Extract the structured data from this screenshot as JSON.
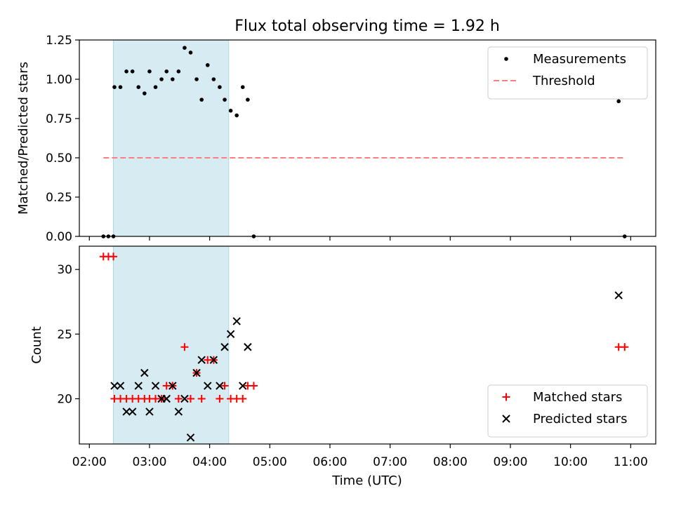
{
  "figure": {
    "title": "Flux total observing time = 1.92 h",
    "xlabel": "Time (UTC)",
    "x_ticks": [
      "02:00",
      "03:00",
      "04:00",
      "05:00",
      "06:00",
      "07:00",
      "08:00",
      "09:00",
      "10:00",
      "11:00"
    ],
    "xlim": [
      "01:50",
      "11:25"
    ],
    "highlight_band": [
      "02:24",
      "04:19"
    ],
    "highlight_color": "#add8e6"
  },
  "chart_data": [
    {
      "type": "scatter",
      "ylabel": "Matched/Predicted stars",
      "ylim": [
        0,
        1.25
      ],
      "y_ticks": [
        "0.00",
        "0.25",
        "0.50",
        "0.75",
        "1.00",
        "1.25"
      ],
      "legend_position": "top-right",
      "series": [
        {
          "name": "Measurements",
          "kind": "points",
          "color": "#000000",
          "points": [
            [
              "02:14",
              0.0
            ],
            [
              "02:19",
              0.0
            ],
            [
              "02:24",
              0.0
            ],
            [
              "02:25",
              0.95
            ],
            [
              "02:31",
              0.95
            ],
            [
              "02:37",
              1.05
            ],
            [
              "02:43",
              1.05
            ],
            [
              "02:49",
              0.95
            ],
            [
              "02:55",
              0.91
            ],
            [
              "03:00",
              1.05
            ],
            [
              "03:06",
              0.95
            ],
            [
              "03:12",
              1.0
            ],
            [
              "03:17",
              1.05
            ],
            [
              "03:23",
              1.0
            ],
            [
              "03:29",
              1.05
            ],
            [
              "03:35",
              1.2
            ],
            [
              "03:41",
              1.17
            ],
            [
              "03:47",
              1.0
            ],
            [
              "03:52",
              0.87
            ],
            [
              "03:58",
              1.09
            ],
            [
              "04:04",
              1.0
            ],
            [
              "04:10",
              0.95
            ],
            [
              "04:15",
              0.87
            ],
            [
              "04:21",
              0.8
            ],
            [
              "04:27",
              0.77
            ],
            [
              "04:33",
              0.95
            ],
            [
              "04:38",
              0.87
            ],
            [
              "04:44",
              0.0
            ],
            [
              "10:48",
              0.86
            ],
            [
              "10:54",
              0.0
            ]
          ]
        },
        {
          "name": "Threshold",
          "kind": "dashed-line",
          "color": "#ff7f7f",
          "points": [
            [
              "02:14",
              0.5
            ],
            [
              "10:54",
              0.5
            ]
          ]
        }
      ]
    },
    {
      "type": "scatter",
      "ylabel": "Count",
      "ylim": [
        16.5,
        31.8
      ],
      "y_ticks": [
        "20",
        "25",
        "30"
      ],
      "legend_position": "bottom-right",
      "series": [
        {
          "name": "Matched stars",
          "marker": "plus",
          "color": "#ff0000",
          "points": [
            [
              "02:14",
              31
            ],
            [
              "02:19",
              31
            ],
            [
              "02:24",
              31
            ],
            [
              "02:25",
              20
            ],
            [
              "02:31",
              20
            ],
            [
              "02:37",
              20
            ],
            [
              "02:43",
              20
            ],
            [
              "02:49",
              20
            ],
            [
              "02:55",
              20
            ],
            [
              "03:00",
              20
            ],
            [
              "03:06",
              20
            ],
            [
              "03:12",
              20
            ],
            [
              "03:17",
              21
            ],
            [
              "03:23",
              21
            ],
            [
              "03:29",
              20
            ],
            [
              "03:35",
              24
            ],
            [
              "03:41",
              20
            ],
            [
              "03:47",
              22
            ],
            [
              "03:52",
              20
            ],
            [
              "03:58",
              23
            ],
            [
              "04:04",
              23
            ],
            [
              "04:10",
              20
            ],
            [
              "04:15",
              21
            ],
            [
              "04:21",
              20
            ],
            [
              "04:27",
              20
            ],
            [
              "04:33",
              20
            ],
            [
              "04:38",
              21
            ],
            [
              "04:44",
              21
            ],
            [
              "10:48",
              24
            ],
            [
              "10:54",
              24
            ]
          ]
        },
        {
          "name": "Predicted stars",
          "marker": "x",
          "color": "#000000",
          "points": [
            [
              "02:25",
              21
            ],
            [
              "02:31",
              21
            ],
            [
              "02:37",
              19
            ],
            [
              "02:43",
              19
            ],
            [
              "02:49",
              21
            ],
            [
              "02:55",
              22
            ],
            [
              "03:00",
              19
            ],
            [
              "03:06",
              21
            ],
            [
              "03:12",
              20
            ],
            [
              "03:17",
              20
            ],
            [
              "03:23",
              21
            ],
            [
              "03:29",
              19
            ],
            [
              "03:35",
              20
            ],
            [
              "03:41",
              17
            ],
            [
              "03:47",
              22
            ],
            [
              "03:52",
              23
            ],
            [
              "03:58",
              21
            ],
            [
              "04:04",
              23
            ],
            [
              "04:10",
              21
            ],
            [
              "04:15",
              24
            ],
            [
              "04:21",
              25
            ],
            [
              "04:27",
              26
            ],
            [
              "04:33",
              21
            ],
            [
              "04:38",
              24
            ],
            [
              "10:48",
              28
            ]
          ]
        }
      ]
    }
  ]
}
